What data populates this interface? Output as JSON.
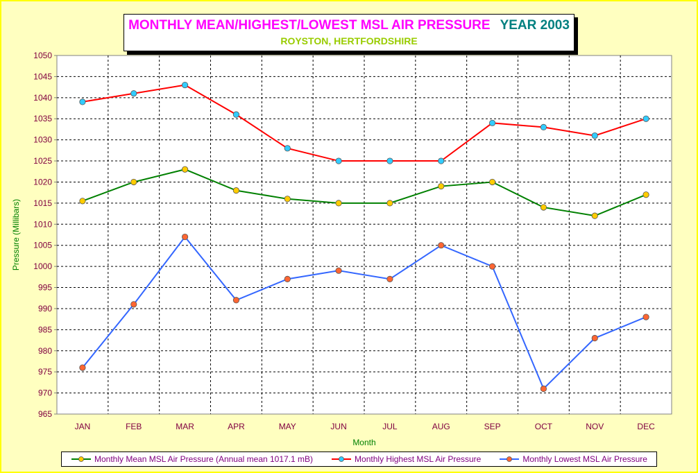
{
  "header": {
    "title": "MONTHLY MEAN/HIGHEST/LOWEST MSL AIR PRESSURE",
    "year_label": "YEAR 2003",
    "subtitle": "ROYSTON, HERTFORDSHIRE"
  },
  "chart_data": {
    "type": "line",
    "title": "MONTHLY MEAN/HIGHEST/LOWEST MSL AIR PRESSURE YEAR 2003",
    "subtitle": "ROYSTON, HERTFORDSHIRE",
    "xlabel": "Month",
    "ylabel": "Pressure (Millibars)",
    "ylim": [
      965,
      1050
    ],
    "ytick_step": 5,
    "grid": true,
    "legend_position": "bottom",
    "categories": [
      "JAN",
      "FEB",
      "MAR",
      "APR",
      "MAY",
      "JUN",
      "JUL",
      "AUG",
      "SEP",
      "OCT",
      "NOV",
      "DEC"
    ],
    "series": [
      {
        "name": "Monthly Mean MSL Air Pressure (Annual mean 1017.1 mB)",
        "line_color": "#008000",
        "marker_color": "#ffcc00",
        "values": [
          1015.5,
          1020,
          1023,
          1018,
          1016,
          1015,
          1015,
          1019,
          1020,
          1014,
          1012,
          1017
        ]
      },
      {
        "name": "Monthly Highest MSL Air Pressure",
        "line_color": "#ff0000",
        "marker_color": "#33ccff",
        "values": [
          1039,
          1041,
          1043,
          1036,
          1028,
          1025,
          1025,
          1025,
          1034,
          1033,
          1031,
          1035
        ]
      },
      {
        "name": "Monthly Lowest MSL Air Pressure",
        "line_color": "#3366ff",
        "marker_color": "#ff6633",
        "values": [
          976,
          991,
          1007,
          992,
          997,
          999,
          997,
          1005,
          1000,
          971,
          983,
          988
        ]
      }
    ]
  },
  "colors": {
    "background": "#ffffc0",
    "frame": "#ffff00",
    "axis_text": "#800040",
    "axis_title": "#008000",
    "grid": "#000000"
  }
}
